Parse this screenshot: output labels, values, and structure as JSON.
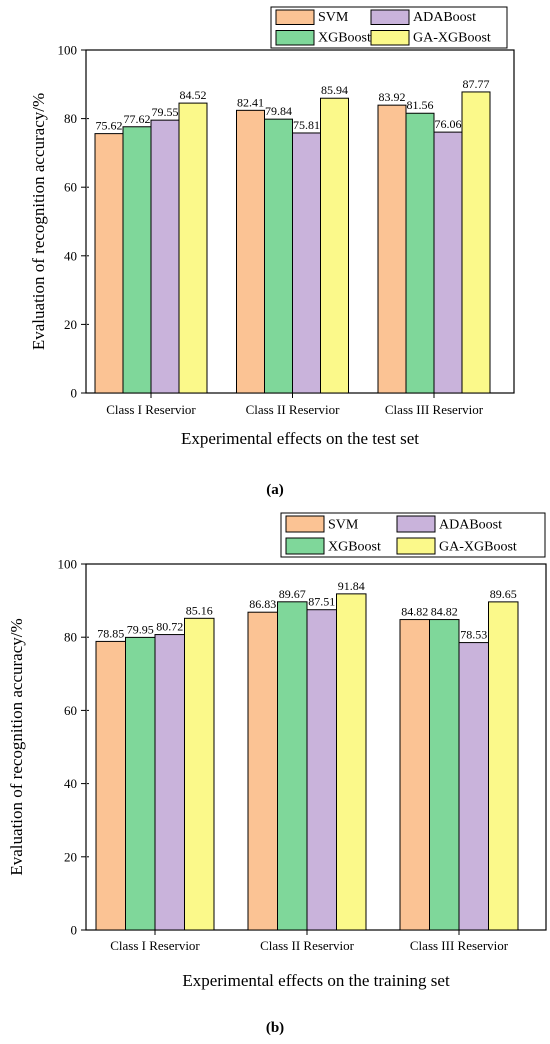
{
  "colors": {
    "SVM": "#fbc394",
    "XGBoost": "#7fd79a",
    "ADABoost": "#c9b3db",
    "GA-XGBoost": "#fbf98a"
  },
  "chart_data": [
    {
      "type": "bar",
      "panel_label": "(a)",
      "xlabel": "Experimental effects on the test set",
      "ylabel": "Evaluation of recognition accuracy/%",
      "ylim": [
        0,
        100
      ],
      "yticks": [
        0,
        20,
        40,
        60,
        80,
        100
      ],
      "categories": [
        "Class I Reservior",
        "Class II Reservior",
        "Class III Reservior"
      ],
      "legend_position": "top-right",
      "series": [
        {
          "name": "SVM",
          "values": [
            75.62,
            82.41,
            83.92
          ]
        },
        {
          "name": "XGBoost",
          "values": [
            77.62,
            79.84,
            81.56
          ]
        },
        {
          "name": "ADABoost",
          "values": [
            79.55,
            75.81,
            76.06
          ]
        },
        {
          "name": "GA-XGBoost",
          "values": [
            84.52,
            85.94,
            87.77
          ]
        }
      ]
    },
    {
      "type": "bar",
      "panel_label": "(b)",
      "xlabel": "Experimental effects on the training set",
      "ylabel": "Evaluation of recognition accuracy/%",
      "ylim": [
        0,
        100
      ],
      "yticks": [
        0,
        20,
        40,
        60,
        80,
        100
      ],
      "categories": [
        "Class I Reservior",
        "Class II Reservior",
        "Class III Reservior"
      ],
      "legend_position": "top-right",
      "series": [
        {
          "name": "SVM",
          "values": [
            78.85,
            86.83,
            84.82
          ]
        },
        {
          "name": "XGBoost",
          "values": [
            79.95,
            89.67,
            84.82
          ]
        },
        {
          "name": "ADABoost",
          "values": [
            80.72,
            87.51,
            78.53
          ]
        },
        {
          "name": "GA-XGBoost",
          "values": [
            85.16,
            91.84,
            89.65
          ]
        }
      ]
    }
  ]
}
